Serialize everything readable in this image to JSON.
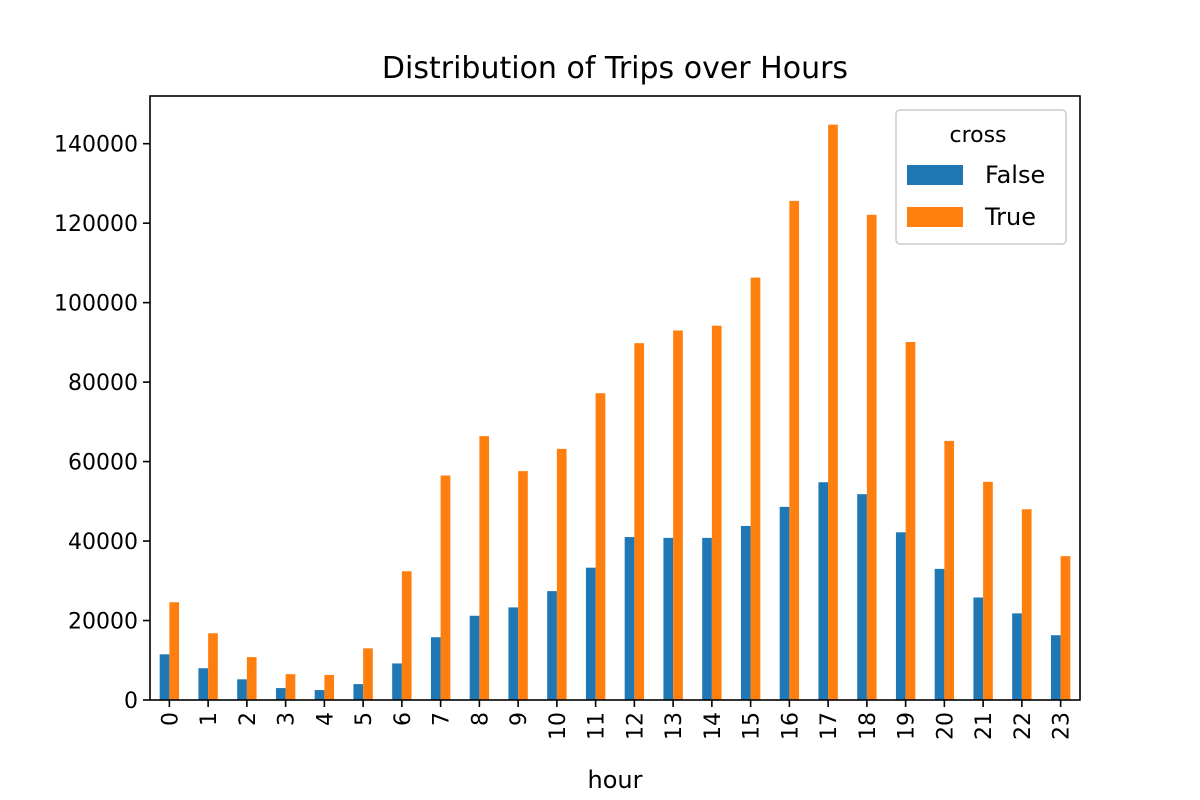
{
  "chart_data": {
    "type": "bar",
    "title": "Distribution of Trips over Hours",
    "xlabel": "hour",
    "ylabel": "",
    "ylim": [
      0,
      152000
    ],
    "yticks": [
      0,
      20000,
      40000,
      60000,
      80000,
      100000,
      120000,
      140000
    ],
    "categories": [
      "0",
      "1",
      "2",
      "3",
      "4",
      "5",
      "6",
      "7",
      "8",
      "9",
      "10",
      "11",
      "12",
      "13",
      "14",
      "15",
      "16",
      "17",
      "18",
      "19",
      "20",
      "21",
      "22",
      "23"
    ],
    "legend": {
      "title": "cross",
      "position": "top-right"
    },
    "grid": false,
    "series": [
      {
        "name": "False",
        "color": "#1f77b4",
        "values": [
          11500,
          8000,
          5200,
          3000,
          2500,
          4000,
          9200,
          15800,
          21200,
          23300,
          27400,
          33300,
          41000,
          40800,
          40800,
          43800,
          48600,
          54800,
          51800,
          42200,
          33000,
          25800,
          21800,
          16300
        ]
      },
      {
        "name": "True",
        "color": "#ff7f0e",
        "values": [
          24600,
          16800,
          10800,
          6500,
          6300,
          13000,
          32400,
          56500,
          66400,
          57600,
          63200,
          77200,
          89800,
          93000,
          94200,
          106300,
          125600,
          144800,
          122100,
          90100,
          65200,
          54900,
          48000,
          36200
        ]
      }
    ]
  }
}
